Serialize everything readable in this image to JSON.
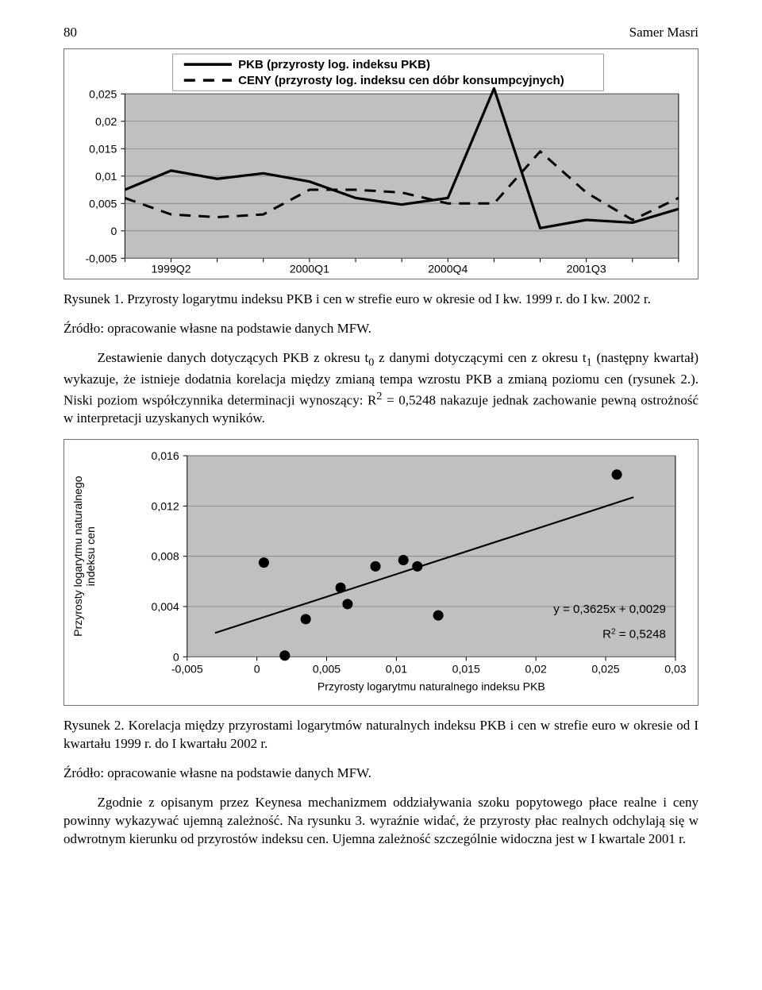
{
  "header": {
    "page_number": "80",
    "author": "Samer Masri"
  },
  "chart1": {
    "type": "line",
    "legend": [
      {
        "label": "PKB (przyrosty log. indeksu PKB)",
        "style": "solid"
      },
      {
        "label": "CENY (przyrosty log. indeksu cen dóbr konsumpcyjnych)",
        "style": "long-dash"
      }
    ],
    "y_ticks": [
      -0.005,
      0,
      0.005,
      0.01,
      0.015,
      0.02,
      0.025
    ],
    "y_tick_labels": [
      "-0,005",
      "0",
      "0,005",
      "0,01",
      "0,015",
      "0,02",
      "0,025"
    ],
    "x_labels": [
      "1999Q2",
      "2000Q1",
      "2000Q4",
      "2001Q3"
    ],
    "series_pkb": [
      0.0075,
      0.011,
      0.0095,
      0.0105,
      0.009,
      0.006,
      0.0048,
      0.006,
      0.026,
      0.0005,
      0.002,
      0.0015,
      0.004
    ],
    "series_ceny": [
      0.006,
      0.003,
      0.0025,
      0.003,
      0.0075,
      0.0075,
      0.007,
      0.005,
      0.005,
      0.0145,
      0.007,
      0.002,
      0.006
    ],
    "plot_bg": "#c0c0c0",
    "grid_color": "#808080",
    "axis_color": "#000000",
    "line_color": "#000000",
    "font_color": "#000000",
    "y_min": -0.005,
    "y_max": 0.025,
    "line_width_pkb": 3.2,
    "line_width_ceny": 3.0,
    "tick_font_size": 14
  },
  "caption1_text": "Rysunek 1. Przyrosty logarytmu indeksu PKB i cen w strefie euro w okresie od I kw. 1999 r. do I kw. 2002 r.",
  "source1_text": "Źródło: opracowanie własne na podstawie danych MFW.",
  "para1_html": "Zestawienie danych dotyczących PKB z okresu t<sub>0</sub> z danymi dotyczącymi cen z okresu t<sub>1</sub> (następny kwartał) wykazuje, że istnieje dodatnia korelacja między zmianą tempa wzrostu PKB a zmianą poziomu cen (rysunek 2.). Niski poziom współczynnika determinacji wynoszący: R<sup>2</sup> = 0,5248 nakazuje jednak zachowanie pewną ostrożność w interpretacji uzyskanych wyników.",
  "chart2": {
    "type": "scatter",
    "y_label": "Przyrosty logarytmu naturalnego\nindeksu cen",
    "x_label": "Przyrosty logarytmu naturalnego indeksu PKB",
    "y_ticks": [
      0,
      0.004,
      0.008,
      0.012,
      0.016
    ],
    "y_tick_labels": [
      "0",
      "0,004",
      "0,008",
      "0,012",
      "0,016"
    ],
    "x_ticks": [
      -0.005,
      0,
      0.005,
      0.01,
      0.015,
      0.02,
      0.025,
      0.03
    ],
    "x_tick_labels": [
      "-0,005",
      "0",
      "0,005",
      "0,01",
      "0,015",
      "0,02",
      "0,025",
      "0,03"
    ],
    "points": [
      [
        0.0005,
        0.0075
      ],
      [
        0.002,
        0.0001
      ],
      [
        0.0035,
        0.003
      ],
      [
        0.006,
        0.0055
      ],
      [
        0.0065,
        0.0042
      ],
      [
        0.0085,
        0.0072
      ],
      [
        0.0105,
        0.0077
      ],
      [
        0.0115,
        0.0072
      ],
      [
        0.013,
        0.0033
      ],
      [
        0.0258,
        0.0145
      ]
    ],
    "trend_x1": -0.003,
    "trend_y1": 0.0019,
    "trend_x2": 0.027,
    "trend_y2": 0.0127,
    "eq_line1": "y = 0,3625x + 0,0029",
    "eq_line2_html": "R<sup>2</sup> = 0,5248",
    "plot_bg": "#c0c0c0",
    "grid_color": "#808080",
    "axis_color": "#000000",
    "marker_color": "#000000",
    "marker_radius": 6.5,
    "trend_width": 2.1,
    "tick_font_size": 14,
    "y_min": 0,
    "y_max": 0.016,
    "x_min": -0.005,
    "x_max": 0.03
  },
  "caption2_text": "Rysunek 2. Korelacja między przyrostami logarytmów naturalnych indeksu PKB i cen w strefie euro w okresie od I kwartału 1999 r. do I kwartału 2002 r.",
  "source2_text": "Źródło: opracowanie własne na podstawie danych MFW.",
  "para2_text": "Zgodnie z opisanym przez Keynesa mechanizmem oddziaływania szoku popytowego płace realne i ceny powinny wykazywać ujemną zależność. Na rysunku 3. wyraźnie widać, że przyrosty płac realnych odchylają się w odwrotnym kierunku od przyrostów indeksu cen. Ujemna zależność szczególnie widoczna jest w I kwartale 2001 r."
}
